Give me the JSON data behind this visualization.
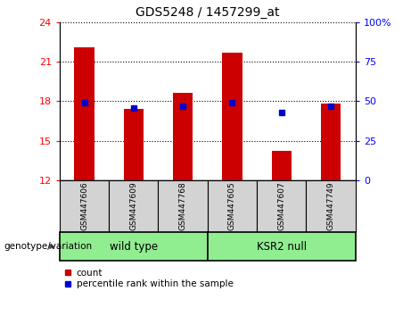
{
  "title": "GDS5248 / 1457299_at",
  "samples": [
    "GSM447606",
    "GSM447609",
    "GSM447768",
    "GSM447605",
    "GSM447607",
    "GSM447749"
  ],
  "bar_values": [
    22.1,
    17.4,
    18.6,
    21.7,
    14.2,
    17.8
  ],
  "percentile_values": [
    17.85,
    17.45,
    17.6,
    17.85,
    17.15,
    17.6
  ],
  "bar_color": "#cc0000",
  "percentile_color": "#0000cc",
  "ylim_left": [
    12,
    24
  ],
  "yticks_left": [
    12,
    15,
    18,
    21,
    24
  ],
  "ylim_right": [
    0,
    100
  ],
  "yticks_right": [
    0,
    25,
    50,
    75,
    100
  ],
  "legend_count_label": "count",
  "legend_percentile_label": "percentile rank within the sample",
  "label_area_bg": "#d3d3d3",
  "group_area_bg": "#90EE90",
  "bar_width": 0.4
}
